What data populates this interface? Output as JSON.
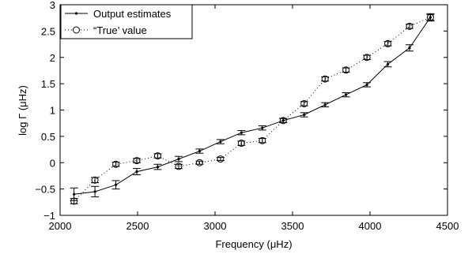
{
  "chart_data": {
    "type": "line",
    "title": "",
    "xlabel": "Frequency (μHz)",
    "ylabel": "log Γ (μHz)",
    "xlim": [
      2000,
      4500
    ],
    "ylim": [
      -1,
      3
    ],
    "xticks": [
      2000,
      2500,
      3000,
      3500,
      4000,
      4500
    ],
    "yticks": [
      -1,
      -0.5,
      0,
      0.5,
      1,
      1.5,
      2,
      2.5,
      3
    ],
    "xtick_labels": [
      "2000",
      "2500",
      "3000",
      "3500",
      "4000",
      "4500"
    ],
    "ytick_labels": [
      "−1",
      "−0.5",
      "0",
      "0.5",
      "1",
      "1.5",
      "2",
      "2.5",
      "3"
    ],
    "grid": false,
    "legend_position": "top-left",
    "series": [
      {
        "name": "Output estimates",
        "style": "solid line with point markers",
        "color": "#000000",
        "x": [
          2090,
          2225,
          2360,
          2495,
          2630,
          2765,
          2900,
          3035,
          3170,
          3305,
          3440,
          3575,
          3710,
          3845,
          3980,
          4115,
          4255,
          4390
        ],
        "y": [
          -0.6,
          -0.55,
          -0.42,
          -0.17,
          -0.08,
          0.07,
          0.22,
          0.4,
          0.57,
          0.66,
          0.8,
          0.91,
          1.1,
          1.29,
          1.48,
          1.87,
          2.18,
          2.76
        ],
        "err": [
          0.12,
          0.1,
          0.08,
          0.06,
          0.05,
          0.05,
          0.04,
          0.04,
          0.04,
          0.04,
          0.04,
          0.04,
          0.04,
          0.04,
          0.04,
          0.05,
          0.06,
          0.07
        ]
      },
      {
        "name": "“True’ value",
        "style": "dotted line with circle markers",
        "color": "#000000",
        "x": [
          2090,
          2225,
          2360,
          2495,
          2630,
          2765,
          2900,
          3035,
          3170,
          3305,
          3440,
          3575,
          3710,
          3845,
          3980,
          4115,
          4255,
          4390
        ],
        "y": [
          -0.73,
          -0.33,
          -0.03,
          0.04,
          0.13,
          -0.07,
          0.0,
          0.07,
          0.37,
          0.42,
          0.8,
          1.12,
          1.59,
          1.76,
          2.0,
          2.26,
          2.59,
          2.76
        ],
        "err": [
          0.05,
          0.05,
          0.04,
          0.04,
          0.04,
          0.04,
          0.03,
          0.03,
          0.04,
          0.04,
          0.04,
          0.04,
          0.04,
          0.04,
          0.04,
          0.04,
          0.04,
          0.05
        ]
      }
    ]
  }
}
